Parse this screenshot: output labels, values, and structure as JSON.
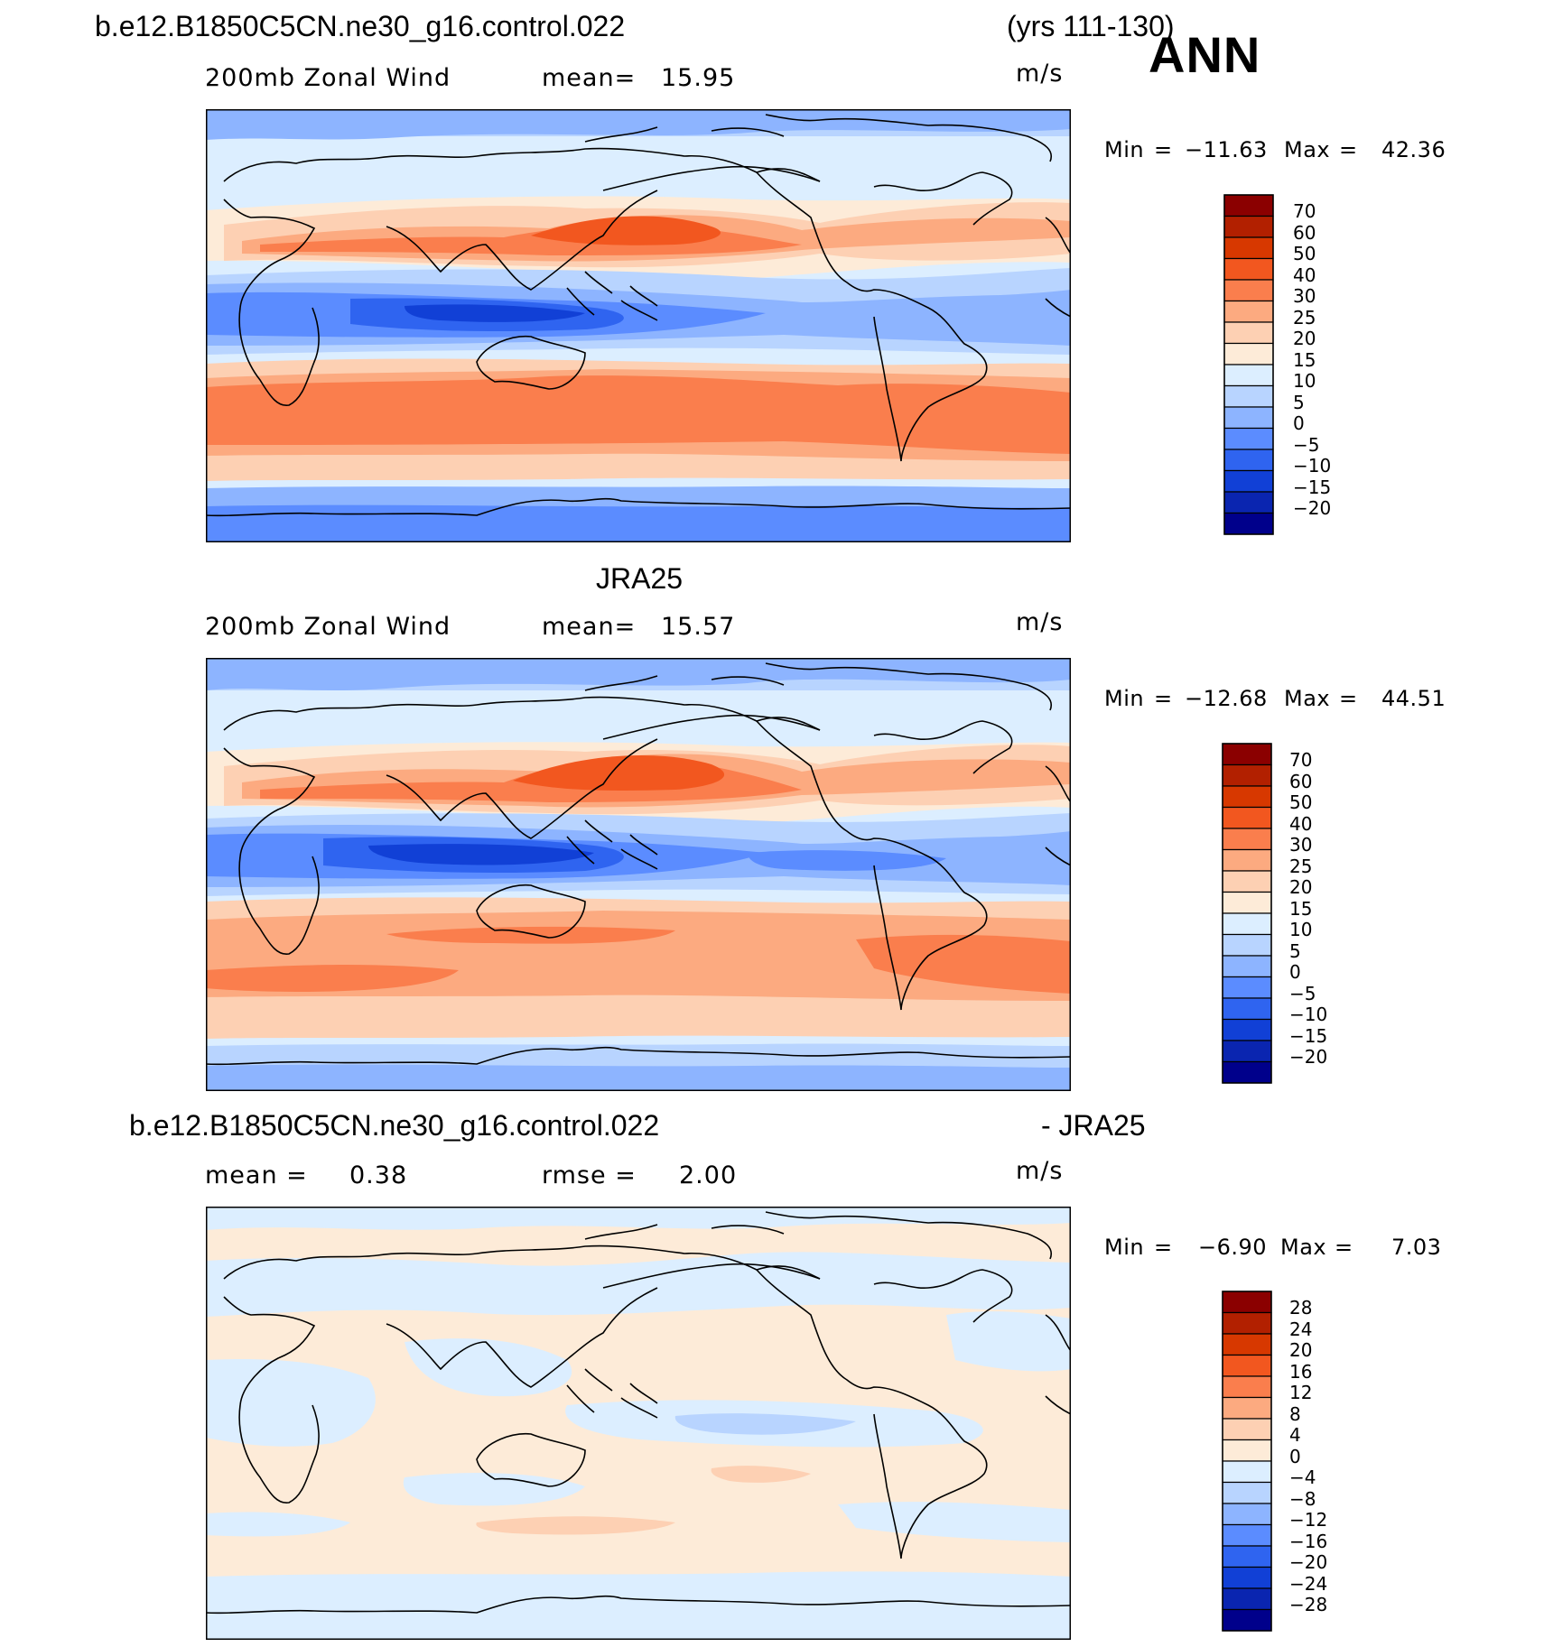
{
  "header": {
    "case_title": "b.e12.B1850C5CN.ne30_g16.control.022",
    "years": "(yrs 111-130)",
    "season": "ANN"
  },
  "panels": [
    {
      "id": "model",
      "heading": "",
      "field": "200mb Zonal Wind",
      "stat_label": "mean=",
      "stat_value": "15.95",
      "units": "m/s",
      "min_label": "Min",
      "min_value": "−11.63",
      "max_label": "Max",
      "max_value": "42.36",
      "colorbar_levels": [
        "70",
        "60",
        "50",
        "40",
        "30",
        "25",
        "20",
        "15",
        "10",
        "5",
        "0",
        "−5",
        "−10",
        "−15",
        "−20"
      ],
      "colorbar_colors": [
        "#8b0000",
        "#b22000",
        "#d73800",
        "#f2571f",
        "#fa7e4d",
        "#fcaa80",
        "#fdd0b3",
        "#fdebd8",
        "#dceeff",
        "#b8d4ff",
        "#8db4ff",
        "#5b8cff",
        "#2f64f0",
        "#1140d6",
        "#0a25b0",
        "#00008b"
      ],
      "map_color_field": "model_u200"
    },
    {
      "id": "obs",
      "heading": "JRA25",
      "field": "200mb Zonal Wind",
      "stat_label": "mean=",
      "stat_value": "15.57",
      "units": "m/s",
      "min_label": "Min",
      "min_value": "−12.68",
      "max_label": "Max",
      "max_value": "44.51",
      "colorbar_levels": [
        "70",
        "60",
        "50",
        "40",
        "30",
        "25",
        "20",
        "15",
        "10",
        "5",
        "0",
        "−5",
        "−10",
        "−15",
        "−20"
      ],
      "colorbar_colors": [
        "#8b0000",
        "#b22000",
        "#d73800",
        "#f2571f",
        "#fa7e4d",
        "#fcaa80",
        "#fdd0b3",
        "#fdebd8",
        "#dceeff",
        "#b8d4ff",
        "#8db4ff",
        "#5b8cff",
        "#2f64f0",
        "#1140d6",
        "#0a25b0",
        "#00008b"
      ],
      "map_color_field": "obs_u200"
    },
    {
      "id": "diff",
      "heading_left": "b.e12.B1850C5CN.ne30_g16.control.022",
      "heading_right": "- JRA25",
      "stat1_label": "mean =",
      "stat1_value": "0.38",
      "stat2_label": "rmse =",
      "stat2_value": "2.00",
      "units": "m/s",
      "min_label": "Min",
      "min_value": "−6.90",
      "max_label": "Max",
      "max_value": "7.03",
      "colorbar_levels": [
        "28",
        "24",
        "20",
        "16",
        "12",
        "8",
        "4",
        "0",
        "−4",
        "−8",
        "−12",
        "−16",
        "−20",
        "−24",
        "−28"
      ],
      "colorbar_colors": [
        "#8b0000",
        "#b22000",
        "#d73800",
        "#f2571f",
        "#fa7e4d",
        "#fcaa80",
        "#fdd0b3",
        "#fdebd8",
        "#dceeff",
        "#b8d4ff",
        "#8db4ff",
        "#5b8cff",
        "#2f64f0",
        "#1140d6",
        "#0a25b0",
        "#00008b"
      ],
      "map_color_field": "diff_u200"
    }
  ]
}
